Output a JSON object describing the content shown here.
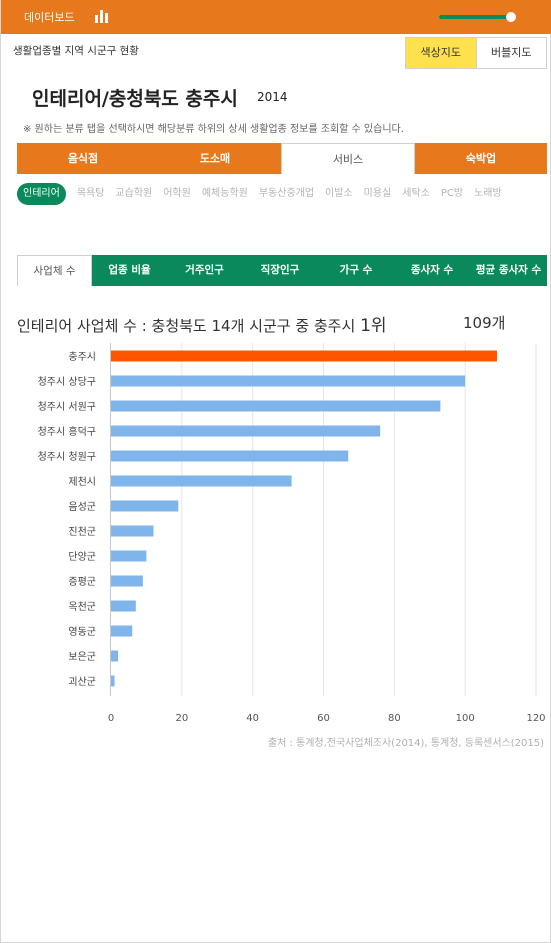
{
  "header": {
    "title": "데이터보드",
    "title_icon": "bar-chart-icon",
    "slider_value": 0.95
  },
  "subtitle": "생활업종별 지역 시군구 현황",
  "map_toggle": {
    "color_map": "색상지도",
    "bubble_map": "버블지도",
    "active": "color_map"
  },
  "page_title": "인테리어/충청북도 충주시",
  "page_year": "2014",
  "notice": "※ 원하는 분류 탭을 선택하시면 해당분류 하위의 상세 생활업종 정보를 조회할 수 있습니다.",
  "category_tabs": [
    "음식점",
    "도소매",
    "서비스",
    "숙박업"
  ],
  "category_selected": 2,
  "subcategories": [
    "인테리어",
    "목욕탕",
    "교습학원",
    "어학원",
    "예체능학원",
    "부동산중개업",
    "이발소",
    "미용실",
    "세탁소",
    "PC방",
    "노래방"
  ],
  "subcategory_selected": 0,
  "metric_tabs": [
    "사업체 수",
    "업종 비율",
    "거주인구",
    "직장인구",
    "가구 수",
    "종사자 수",
    "평균 종사자 수"
  ],
  "metric_selected": 0,
  "chart_heading": {
    "prefix": "인테리어 사업체 수 : 충청북도 14개 시군구 중 충주시 ",
    "rank": "1위",
    "value": "109개"
  },
  "colors": {
    "orange": "#e8781c",
    "green": "#0a8a5c",
    "highlight_bar": "#ff5500",
    "bar": "#7fb5ea"
  },
  "chart_data": {
    "type": "bar",
    "orientation": "horizontal",
    "categories": [
      "충주시",
      "청주시 상당구",
      "청주시 서원구",
      "청주시 흥덕구",
      "청주시 청원구",
      "제천시",
      "음성군",
      "진천군",
      "단양군",
      "증평군",
      "옥천군",
      "영동군",
      "보은군",
      "괴산군"
    ],
    "values": [
      109,
      100,
      93,
      76,
      67,
      51,
      19,
      12,
      10,
      9,
      7,
      6,
      2,
      1
    ],
    "highlight_index": 0,
    "xlim": [
      0,
      120
    ],
    "xticks": [
      0,
      20,
      40,
      60,
      80,
      100,
      120
    ],
    "grid": true
  },
  "source": "출처 : 통계청,전국사업체조사(2014), 통계청, 등록센서스(2015)"
}
